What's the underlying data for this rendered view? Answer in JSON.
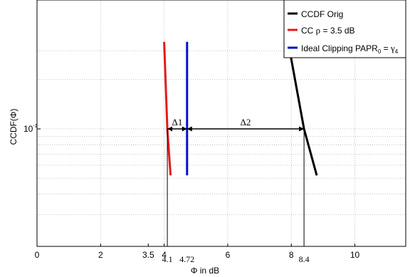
{
  "chart_data": {
    "type": "line",
    "xlabel": "Φ in dB",
    "ylabel": "CCDF(Φ)",
    "xlim": [
      0,
      11.6
    ],
    "x_ticks": [
      0,
      2,
      4,
      6,
      8,
      10
    ],
    "x_ticks_extra": [
      3.5
    ],
    "x_annotations": [
      4.1,
      4.72,
      8.4
    ],
    "x_annotation_labels": [
      "4.1",
      "4.72",
      "8.4"
    ],
    "y_scale": "log",
    "y_tick_label": {
      "base": "10",
      "exp": "-1"
    },
    "grid": true,
    "legend_position": "top-right",
    "colors": {
      "orig": "#000000",
      "cc": "#e31a1c",
      "ideal": "#0010c8"
    },
    "series": [
      {
        "name": "CCDF Orig",
        "color": "#000000",
        "points": [
          [
            7.9,
            0.34
          ],
          [
            8.4,
            0.1
          ],
          [
            8.8,
            0.052
          ]
        ]
      },
      {
        "name": "CC ρ = 3.5 dB",
        "color": "#e31a1c",
        "points": [
          [
            4.0,
            0.34
          ],
          [
            4.1,
            0.1
          ],
          [
            4.2,
            0.052
          ]
        ]
      },
      {
        "name": "Ideal Clipping PAPR₀ = γ₄",
        "color": "#0010c8",
        "points": [
          [
            4.72,
            0.34
          ],
          [
            4.72,
            0.052
          ]
        ]
      }
    ],
    "annotations": [
      {
        "label": "Δ1",
        "from": 4.1,
        "to": 4.72,
        "y": 0.1
      },
      {
        "label": "Δ2",
        "from": 4.72,
        "to": 8.4,
        "y": 0.1
      }
    ]
  },
  "legend": {
    "items": [
      {
        "label": "CCDF Orig",
        "color": "#000000"
      },
      {
        "label_pre": "CC ",
        "label_greek": "ρ",
        "label_post": " = 3.5 dB",
        "color": "#e31a1c"
      },
      {
        "label_pre": "Ideal Clipping PAPR",
        "label_sub": "0",
        "label_mid": " = ",
        "label_greek": "γ",
        "label_sub2": "4",
        "color": "#0010c8"
      }
    ]
  }
}
